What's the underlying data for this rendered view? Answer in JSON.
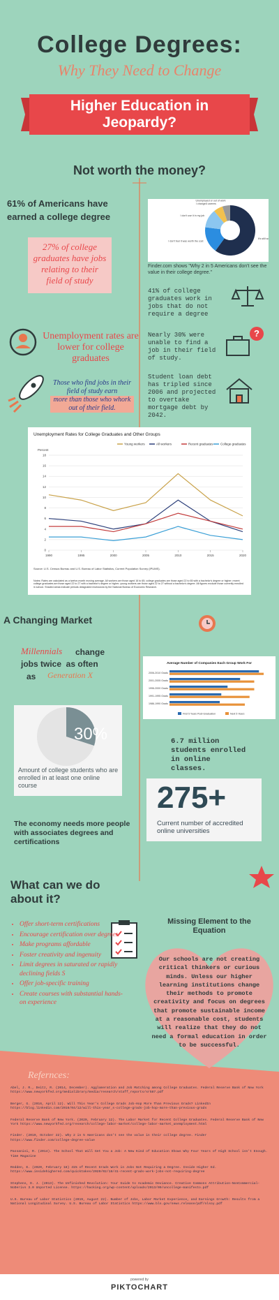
{
  "header": {
    "title": "College Degrees:",
    "subtitle": "Why They Need to Change",
    "banner": "Higher Education in Jeopardy?"
  },
  "section1": {
    "heading": "Not worth the money?",
    "stat_left": "61% of Americans have earned a college degree",
    "pink_box": "27% of college graduates have jobs relating to their field of study",
    "unemployment": "Unemployment rates are lower for college graduates",
    "earnings_lead": "Those who find jobs in their field of study earn",
    "earnings_highlight": "more than those who whork out of their field.",
    "caption": "Finder.com shows \"Why 2 in 5 Americans don't see the value in their college degree.\"",
    "facts": [
      "41% of college graduates work in jobs that do not require a degree",
      "Nearly 30% were unable to find a job in their field of study.",
      "Student loan debt has tripled since 2006 and projected to overtake mortgage debt by 2042."
    ]
  },
  "pie_chart": {
    "type": "pie",
    "categories": [
      "It's still worth the money",
      "I don't feel it was worth the cost",
      "I don't use it in my job",
      "I changed careers",
      "Unemployed or out of work"
    ],
    "values": [
      60,
      17,
      12,
      6,
      5
    ],
    "colors": [
      "#1f2f4e",
      "#2b8de0",
      "#8cc6f0",
      "#f2c14e",
      "#9a9a9a"
    ]
  },
  "line_chart": {
    "type": "line",
    "title": "Unemployment Rates for College Graduates and Other Groups",
    "y_label": "Percent",
    "x": [
      1990,
      1995,
      2000,
      2005,
      2010,
      2015,
      2020
    ],
    "series": [
      {
        "name": "Young workers",
        "color": "#c9a24a",
        "values": [
          10.5,
          9.5,
          7.5,
          9,
          14.5,
          9.5,
          6.5
        ]
      },
      {
        "name": "All workers",
        "color": "#2c3f7a",
        "values": [
          6,
          5.5,
          4,
          5,
          9.5,
          5.5,
          3.5
        ]
      },
      {
        "name": "Recent graduates",
        "color": "#c23a3a",
        "values": [
          4.5,
          4.5,
          3.5,
          5,
          7,
          5.5,
          4
        ]
      },
      {
        "name": "College graduates",
        "color": "#3a9fd6",
        "values": [
          2.5,
          2.5,
          1.8,
          2.5,
          4.5,
          2.8,
          2
        ]
      }
    ],
    "xlim": [
      1990,
      2020
    ],
    "xticks": [
      1990,
      1995,
      2000,
      2005,
      2010,
      2015,
      2020
    ],
    "ylim": [
      0,
      18
    ],
    "yticks": [
      0,
      2,
      4,
      6,
      8,
      10,
      12,
      14,
      16,
      18
    ],
    "grid": true,
    "source": "Source: U.S. Census Bureau and U.S. Bureau of Labor Statistics, Current Population Survey (IPUMS).",
    "notes": "Notes: Rates are calculated as a twelve-month moving average. All workers are those aged 16 to 65; college graduates are those aged 22 to 65 with a bachelor's degree or higher; recent college graduates are those aged 22 to 27 with a bachelor's degree or higher; young workers are those aged 22 to 27 without a bachelor's degree. All figures exclude those currently enrolled in school. Shaded areas indicate periods designated recessions by the National Bureau of Economic Research."
  },
  "section2": {
    "heading": "A Changing Market",
    "millennials": "Millennials",
    "change": "change",
    "jobs_twice": "jobs twice  as often",
    "as": "as",
    "genx": "Generation X",
    "online_pct": "30%",
    "online_caption": "Amount of college students who are enrolled in at least one online course",
    "enrolled": "6.7 million students enrolled in online classes.",
    "universities_count": "275+",
    "universities_caption": "Current number of accredited online universities",
    "economy": "The economy needs more people with associates degrees and certifications"
  },
  "bar_chart": {
    "type": "bar",
    "title": "Average Number of Companies Each Group Work For",
    "categories": [
      "2006-2010 Grads",
      "2001-2005 Grads",
      "1996-2000 Grads",
      "1991-1995 Grads",
      "1986-1990 Grads"
    ],
    "series": [
      {
        "name": "First 5 Years Post-Graduation",
        "color": "#2a6ab0",
        "values": [
          2.85,
          2.25,
          1.85,
          1.65,
          1.6
        ]
      },
      {
        "name": "Next 5 Years",
        "color": "#e8923a",
        "values": [
          3,
          2.7,
          2.7,
          2.55,
          2.4
        ]
      }
    ],
    "xlim": [
      0,
      3.2
    ]
  },
  "section3": {
    "heading": "What can we do about it?",
    "bullets": [
      "Offer short-term certifications",
      "Encourage certification over degrees",
      "Make programs affordable",
      "Foster creativity and ingenuity",
      "Limit degrees in saturated or rapidly declining fields S",
      "Offer job-specific training",
      "Create courses with substantial hands-on experience"
    ],
    "missing_heading": "Missing Element to the Equation",
    "missing_text": "Our schools are not creating critical thinkers or curious minds. Unless our higher learning institutions change their methods to promote creativity and focus on degrees that promote sustainable income at a reasonable cost, students will realize that they do not need a formal education in order to be successful."
  },
  "references": {
    "heading": "Refernces:",
    "items": [
      "Abel, J. R., Deitz, R. (2014, December). Agglomeration and Job Matching among College Graduates. Federal Reserve Bank of New York https://www.newyorkfed.org/medialibrary/media/research/staff_reports/sr587.pdf",
      "Berger, G. (2016, April 12). Will This Year's College Grads Job-Hop More Than Previous Grads? LinkedIn https://blog.linkedin.com/2016/04/12/will-this-year_s-college-grads-job-hop-more-than-previous-grads",
      "Federal Reserve Bank of New York. (2020, February 12). The Labor Market for Recent College Graduates. Federal Reserve Bank of New York https://www.newyorkfed.org/research/college-labor-market/college-labor-market_unemployment.html",
      "Finder. (2019, October 22). Why 2 in 5 Americans don't see the value in their college degree. Finder https://www.finder.com/college-degree-value",
      "Passanisi, R. (2014). The School That Will Get You a Job: A New Kind of Education Shows Why Four Years of High School isn't Enough. Time Magazine",
      "Redden, E. (2020, February 18) 41% of Recent Grads Work in Jobs Not Requiring a Degree. Inside Higher Ed. https://www.insidehighered.com/quicktakes/2020/02/18/41-recent-grads-work-jobs-not-requiring-degree",
      "Stephens, D. J. (2013). The Unfinished Revolution: Your Guide to Academic Deviance. Creative Commons Attribution-NonCommercial-NoDerivs 3.0 Unported License. https://hacking.org/wp-content/uploads/2013/09/uncollege-manifesto.pdf",
      "U.S. Bureau of Labor Statistics (2019, August 22). Number of Jobs, Labor Market Experience, and Earnings Growth: Results from a National Longitudinal Survey. U.S. Bureau of Labor Statistics https://www.bls.gov/news.release/pdf/nlsoy.pdf"
    ]
  },
  "footer": {
    "powered": "powered by",
    "brand": "PIKTOCHART"
  }
}
